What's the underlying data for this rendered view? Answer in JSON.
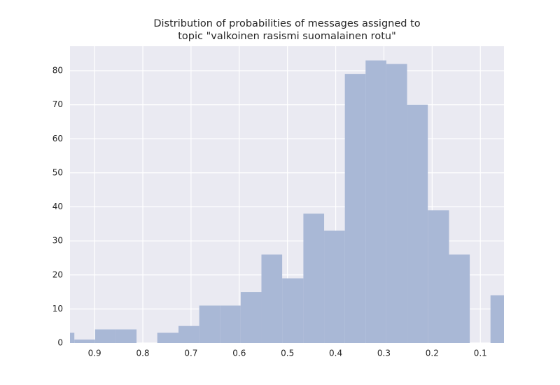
{
  "chart_data": {
    "type": "histogram",
    "title": [
      "Distribution of probabilities of messages assigned to",
      "topic \"valkoinen rasismi suomalainen rotu\""
    ],
    "bins": [
      0.985,
      0.942,
      0.899,
      0.856,
      0.813,
      0.77,
      0.726,
      0.683,
      0.64,
      0.597,
      0.554,
      0.511,
      0.467,
      0.424,
      0.381,
      0.338,
      0.295,
      0.252,
      0.209,
      0.165,
      0.122,
      0.079,
      0.036
    ],
    "counts": [
      3,
      1,
      4,
      4,
      0,
      3,
      5,
      11,
      11,
      15,
      26,
      19,
      38,
      33,
      79,
      83,
      82,
      70,
      39,
      26,
      0,
      14
    ],
    "color": "#a9b8d6",
    "xlim": [
      0.951,
      0.051
    ],
    "xticks": [
      0.9,
      0.8,
      0.7,
      0.6,
      0.5,
      0.4,
      0.3,
      0.2,
      0.1
    ],
    "ylim": [
      0,
      87.2
    ],
    "yticks": [
      0,
      10,
      20,
      30,
      40,
      50,
      60,
      70,
      80
    ],
    "grid": true
  }
}
